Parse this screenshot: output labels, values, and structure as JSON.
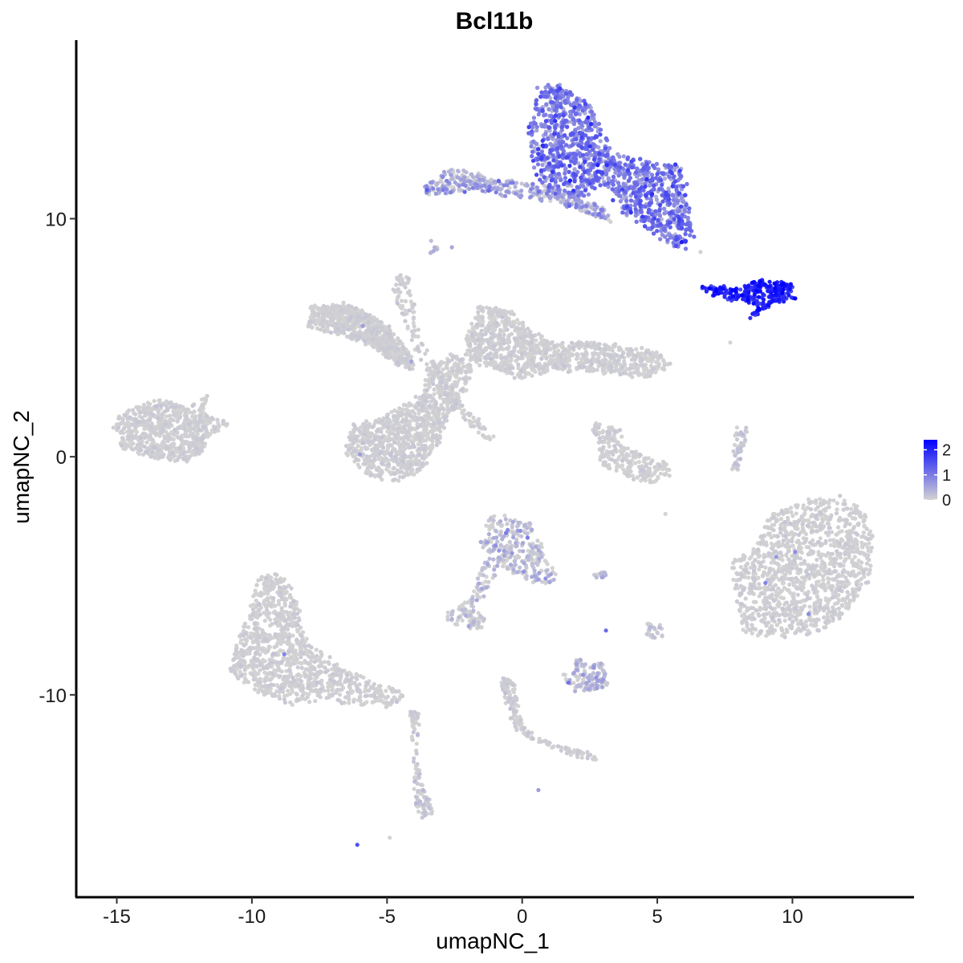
{
  "chart_data": {
    "type": "scatter",
    "title": "Bcl11b",
    "xlabel": "umapNC_1",
    "ylabel": "umapNC_2",
    "xlim": [
      -16.5,
      14.5
    ],
    "ylim": [
      -18.5,
      17.5
    ],
    "x_ticks": [
      -15,
      -10,
      -5,
      0,
      5,
      10
    ],
    "x_tick_labels": [
      "-15",
      "-10",
      "-5",
      "0",
      "5",
      "10"
    ],
    "y_ticks": [
      -10,
      0,
      10
    ],
    "y_tick_labels": [
      "-10",
      "0",
      "10"
    ],
    "grid": false,
    "legend_position": "right",
    "color_scale": {
      "low_color": "#d3d3d3",
      "high_color": "#0000ff",
      "range": [
        0,
        2.4
      ],
      "breaks": [
        0,
        1,
        2
      ],
      "break_labels": [
        "0",
        "1",
        "2"
      ]
    },
    "clusters": [
      {
        "id": "top-right-large",
        "region": [
          [
            0.6,
            15.5
          ],
          [
            1.5,
            15.6
          ],
          [
            2.6,
            14.8
          ],
          [
            3.2,
            13.0
          ],
          [
            4.4,
            12.4
          ],
          [
            5.9,
            12.2
          ],
          [
            6.1,
            10.8
          ],
          [
            6.3,
            9.2
          ],
          [
            5.8,
            8.8
          ],
          [
            4.6,
            9.6
          ],
          [
            3.8,
            10.3
          ],
          [
            3.2,
            11.4
          ],
          [
            2.2,
            11.0
          ],
          [
            1.2,
            11.1
          ],
          [
            0.6,
            11.6
          ],
          [
            0.2,
            13.2
          ]
        ],
        "n": 2200,
        "expr_mean": 0.95,
        "expr_sd": 0.35,
        "jitter": 0.25
      },
      {
        "id": "top-right-tail",
        "region": [
          [
            -3.6,
            11.4
          ],
          [
            -2.6,
            12.1
          ],
          [
            -1.8,
            11.9
          ],
          [
            -1.0,
            11.6
          ],
          [
            0.5,
            11.5
          ],
          [
            2.0,
            11.0
          ],
          [
            3.0,
            10.4
          ],
          [
            3.4,
            9.8
          ],
          [
            2.6,
            10.1
          ],
          [
            1.0,
            10.8
          ],
          [
            -0.5,
            11.0
          ],
          [
            -1.8,
            11.2
          ],
          [
            -3.0,
            11.0
          ],
          [
            -3.5,
            11.0
          ]
        ],
        "n": 380,
        "expr_mean": 0.35,
        "expr_sd": 0.35,
        "jitter": 0.15
      },
      {
        "id": "right-strip",
        "region": [
          [
            6.6,
            7.2
          ],
          [
            8.0,
            7.1
          ],
          [
            8.8,
            7.5
          ],
          [
            9.5,
            7.4
          ],
          [
            10.0,
            7.2
          ],
          [
            10.1,
            6.6
          ],
          [
            9.4,
            6.5
          ],
          [
            8.8,
            6.0
          ],
          [
            8.4,
            5.8
          ],
          [
            8.6,
            6.5
          ],
          [
            7.6,
            6.6
          ],
          [
            6.8,
            6.9
          ]
        ],
        "n": 260,
        "expr_mean": 1.9,
        "expr_sd": 0.3,
        "jitter": 0.1
      },
      {
        "id": "center-star-left",
        "region": [
          [
            -7.8,
            6.3
          ],
          [
            -6.5,
            6.4
          ],
          [
            -5.5,
            5.9
          ],
          [
            -4.8,
            5.3
          ],
          [
            -4.2,
            4.4
          ],
          [
            -4.0,
            3.6
          ],
          [
            -4.8,
            4.0
          ],
          [
            -5.8,
            4.8
          ],
          [
            -7.0,
            5.2
          ],
          [
            -7.9,
            5.5
          ]
        ],
        "n": 700,
        "expr_mean": 0.02,
        "expr_sd": 0.05,
        "jitter": 0.15
      },
      {
        "id": "center-star-right",
        "region": [
          [
            -1.6,
            6.3
          ],
          [
            -0.5,
            6.2
          ],
          [
            0.4,
            5.2
          ],
          [
            1.2,
            4.8
          ],
          [
            2.6,
            4.8
          ],
          [
            3.8,
            4.6
          ],
          [
            4.8,
            4.5
          ],
          [
            5.5,
            3.9
          ],
          [
            4.6,
            3.3
          ],
          [
            3.0,
            3.5
          ],
          [
            1.2,
            3.7
          ],
          [
            0.0,
            3.2
          ],
          [
            -1.2,
            3.8
          ],
          [
            -2.2,
            4.1
          ],
          [
            -2.0,
            5.2
          ]
        ],
        "n": 1100,
        "expr_mean": 0.02,
        "expr_sd": 0.05,
        "jitter": 0.15
      },
      {
        "id": "center-star-body",
        "region": [
          [
            -3.4,
            3.9
          ],
          [
            -2.6,
            4.3
          ],
          [
            -1.8,
            3.8
          ],
          [
            -2.2,
            2.6
          ],
          [
            -2.8,
            1.4
          ],
          [
            -3.2,
            0.4
          ],
          [
            -3.6,
            -0.6
          ],
          [
            -4.6,
            -1.0
          ],
          [
            -5.8,
            -0.8
          ],
          [
            -6.5,
            0.2
          ],
          [
            -6.3,
            1.3
          ],
          [
            -5.2,
            1.7
          ],
          [
            -4.0,
            2.4
          ],
          [
            -3.6,
            3.0
          ]
        ],
        "n": 1000,
        "expr_mean": 0.02,
        "expr_sd": 0.05,
        "jitter": 0.15
      },
      {
        "id": "center-star-lines",
        "region": [
          [
            -4.6,
            7.7
          ],
          [
            -4.2,
            7.6
          ],
          [
            -3.8,
            5.0
          ],
          [
            -2.4,
            2.4
          ],
          [
            -1.4,
            1.4
          ],
          [
            -1.0,
            0.7
          ],
          [
            -1.6,
            0.9
          ],
          [
            -2.6,
            2.0
          ],
          [
            -4.0,
            4.6
          ],
          [
            -4.8,
            6.8
          ]
        ],
        "n": 160,
        "expr_mean": 0.02,
        "expr_sd": 0.06,
        "jitter": 0.1
      },
      {
        "id": "left-blob",
        "region": [
          [
            -14.9,
            1.8
          ],
          [
            -13.6,
            2.4
          ],
          [
            -12.8,
            2.3
          ],
          [
            -12.2,
            2.1
          ],
          [
            -11.5,
            2.7
          ],
          [
            -11.8,
            1.8
          ],
          [
            -10.8,
            1.4
          ],
          [
            -11.6,
            0.8
          ],
          [
            -12.0,
            0.0
          ],
          [
            -12.4,
            -0.2
          ],
          [
            -13.6,
            -0.1
          ],
          [
            -14.8,
            0.4
          ],
          [
            -15.1,
            1.1
          ]
        ],
        "n": 700,
        "expr_mean": 0.02,
        "expr_sd": 0.05,
        "jitter": 0.12
      },
      {
        "id": "small-center-right",
        "region": [
          [
            2.6,
            1.4
          ],
          [
            3.6,
            1.3
          ],
          [
            3.7,
            0.6
          ],
          [
            4.3,
            0.2
          ],
          [
            4.8,
            -0.1
          ],
          [
            5.5,
            -0.2
          ],
          [
            5.4,
            -1.0
          ],
          [
            4.4,
            -1.1
          ],
          [
            3.0,
            -0.4
          ],
          [
            2.8,
            0.4
          ]
        ],
        "n": 220,
        "expr_mean": 0.02,
        "expr_sd": 0.05,
        "jitter": 0.12
      },
      {
        "id": "far-right-big",
        "region": [
          [
            10.5,
            -1.8
          ],
          [
            11.8,
            -1.6
          ],
          [
            12.6,
            -2.2
          ],
          [
            13.0,
            -3.4
          ],
          [
            12.8,
            -5.2
          ],
          [
            12.0,
            -6.6
          ],
          [
            11.0,
            -7.4
          ],
          [
            9.4,
            -7.6
          ],
          [
            8.2,
            -7.4
          ],
          [
            7.8,
            -5.6
          ],
          [
            7.8,
            -4.3
          ],
          [
            8.6,
            -3.8
          ],
          [
            9.2,
            -2.4
          ]
        ],
        "n": 1500,
        "expr_mean": 0.02,
        "expr_sd": 0.05,
        "jitter": 0.12
      },
      {
        "id": "thin-right-vertical",
        "region": [
          [
            7.9,
            1.3
          ],
          [
            8.4,
            1.2
          ],
          [
            8.2,
            0.2
          ],
          [
            8.0,
            -0.6
          ],
          [
            7.7,
            -0.6
          ],
          [
            7.8,
            0.4
          ]
        ],
        "n": 45,
        "expr_mean": 0.05,
        "expr_sd": 0.1,
        "jitter": 0.06
      },
      {
        "id": "mid-bottom-small",
        "region": [
          [
            -1.2,
            -2.5
          ],
          [
            0.2,
            -2.6
          ],
          [
            0.6,
            -3.5
          ],
          [
            1.0,
            -4.4
          ],
          [
            1.3,
            -5.0
          ],
          [
            1.1,
            -5.4
          ],
          [
            0.0,
            -5.1
          ],
          [
            -1.1,
            -4.4
          ],
          [
            -1.6,
            -3.6
          ]
        ],
        "n": 260,
        "expr_mean": 0.12,
        "expr_sd": 0.25,
        "jitter": 0.1
      },
      {
        "id": "mid-bottom-arm",
        "region": [
          [
            -1.4,
            -4.4
          ],
          [
            -0.8,
            -4.6
          ],
          [
            -1.4,
            -5.8
          ],
          [
            -2.0,
            -6.8
          ],
          [
            -2.6,
            -7.2
          ],
          [
            -2.8,
            -6.6
          ],
          [
            -2.2,
            -6.2
          ],
          [
            -1.8,
            -5.6
          ]
        ],
        "n": 90,
        "expr_mean": 0.1,
        "expr_sd": 0.2,
        "jitter": 0.08
      },
      {
        "id": "mid-bottom-lower",
        "region": [
          [
            1.8,
            -8.5
          ],
          [
            2.9,
            -8.6
          ],
          [
            3.2,
            -9.0
          ],
          [
            3.2,
            -9.6
          ],
          [
            2.6,
            -9.9
          ],
          [
            1.7,
            -9.8
          ],
          [
            1.5,
            -9.2
          ]
        ],
        "n": 120,
        "expr_mean": 0.15,
        "expr_sd": 0.25,
        "jitter": 0.08
      },
      {
        "id": "bottom-chain",
        "region": [
          [
            -0.8,
            -9.3
          ],
          [
            -0.3,
            -9.4
          ],
          [
            0.0,
            -11.2
          ],
          [
            0.6,
            -11.8
          ],
          [
            1.6,
            -12.2
          ],
          [
            2.6,
            -12.4
          ],
          [
            2.8,
            -12.8
          ],
          [
            2.0,
            -12.6
          ],
          [
            0.6,
            -12.0
          ],
          [
            -0.3,
            -11.4
          ],
          [
            -0.6,
            -10.4
          ]
        ],
        "n": 160,
        "expr_mean": 0.03,
        "expr_sd": 0.07,
        "jitter": 0.06
      },
      {
        "id": "bottom-left-large",
        "region": [
          [
            -9.8,
            -5.0
          ],
          [
            -8.8,
            -5.0
          ],
          [
            -8.4,
            -5.8
          ],
          [
            -8.0,
            -7.6
          ],
          [
            -6.8,
            -8.8
          ],
          [
            -5.2,
            -9.6
          ],
          [
            -4.2,
            -10.0
          ],
          [
            -4.9,
            -10.5
          ],
          [
            -6.0,
            -10.4
          ],
          [
            -7.6,
            -10.2
          ],
          [
            -8.6,
            -10.4
          ],
          [
            -10.0,
            -9.8
          ],
          [
            -10.8,
            -9.0
          ],
          [
            -10.6,
            -7.8
          ],
          [
            -10.0,
            -6.2
          ]
        ],
        "n": 1100,
        "expr_mean": 0.02,
        "expr_sd": 0.05,
        "jitter": 0.12
      },
      {
        "id": "bottom-left-tail",
        "region": [
          [
            -4.2,
            -10.6
          ],
          [
            -3.8,
            -10.8
          ],
          [
            -3.9,
            -12.4
          ],
          [
            -3.6,
            -14.0
          ],
          [
            -3.2,
            -15.0
          ],
          [
            -3.8,
            -15.2
          ],
          [
            -4.0,
            -14.2
          ],
          [
            -4.0,
            -12.8
          ]
        ],
        "n": 110,
        "expr_mean": 0.04,
        "expr_sd": 0.1,
        "jitter": 0.05
      },
      {
        "id": "small-islands",
        "region": [
          [
            -2.0,
            -6.6
          ],
          [
            -1.4,
            -6.6
          ],
          [
            -1.4,
            -7.2
          ],
          [
            -2.0,
            -7.2
          ]
        ],
        "n": 35,
        "expr_mean": 0.08,
        "expr_sd": 0.2,
        "jitter": 0.08
      },
      {
        "id": "small-islands-2",
        "region": [
          [
            4.6,
            -7.0
          ],
          [
            5.2,
            -7.0
          ],
          [
            5.2,
            -7.6
          ],
          [
            4.6,
            -7.6
          ]
        ],
        "n": 25,
        "expr_mean": 0.05,
        "expr_sd": 0.1,
        "jitter": 0.05
      },
      {
        "id": "small-islands-3",
        "region": [
          [
            2.6,
            -4.8
          ],
          [
            3.1,
            -4.8
          ],
          [
            3.1,
            -5.1
          ],
          [
            2.6,
            -5.1
          ]
        ],
        "n": 14,
        "expr_mean": 0.2,
        "expr_sd": 0.2,
        "jitter": 0.04
      },
      {
        "id": "small-islands-4",
        "region": [
          [
            -3.4,
            9.1
          ],
          [
            -3.1,
            9.1
          ],
          [
            -3.1,
            8.5
          ],
          [
            -3.4,
            8.5
          ]
        ],
        "n": 10,
        "expr_mean": 0.2,
        "expr_sd": 0.25,
        "jitter": 0.04
      }
    ],
    "scatter_points": [
      {
        "x": -6.1,
        "y": -16.3,
        "expr": 1.5
      },
      {
        "x": -4.9,
        "y": -16.0,
        "expr": 0
      },
      {
        "x": 0.6,
        "y": -14.0,
        "expr": 0.6
      },
      {
        "x": 3.1,
        "y": -7.3,
        "expr": 1.2
      },
      {
        "x": 9.4,
        "y": -4.2,
        "expr": 0.7
      },
      {
        "x": 10.1,
        "y": -4.0,
        "expr": 0.8
      },
      {
        "x": 10.6,
        "y": -6.6,
        "expr": 0.8
      },
      {
        "x": 9.0,
        "y": -5.3,
        "expr": 0.9
      },
      {
        "x": -8.8,
        "y": -8.3,
        "expr": 0.9
      },
      {
        "x": -0.6,
        "y": -3.2,
        "expr": 1.0
      },
      {
        "x": 0.2,
        "y": -3.4,
        "expr": 1.0
      },
      {
        "x": -2.6,
        "y": 8.8,
        "expr": 0.5
      },
      {
        "x": -5.9,
        "y": 5.5,
        "expr": 0.6
      },
      {
        "x": -4.1,
        "y": 4.0,
        "expr": 0.5
      },
      {
        "x": -6.0,
        "y": 0.1,
        "expr": 0.6
      },
      {
        "x": 6.6,
        "y": 8.6,
        "expr": 0
      },
      {
        "x": 5.3,
        "y": -2.4,
        "expr": 0
      },
      {
        "x": 7.7,
        "y": 4.8,
        "expr": 0
      }
    ]
  }
}
